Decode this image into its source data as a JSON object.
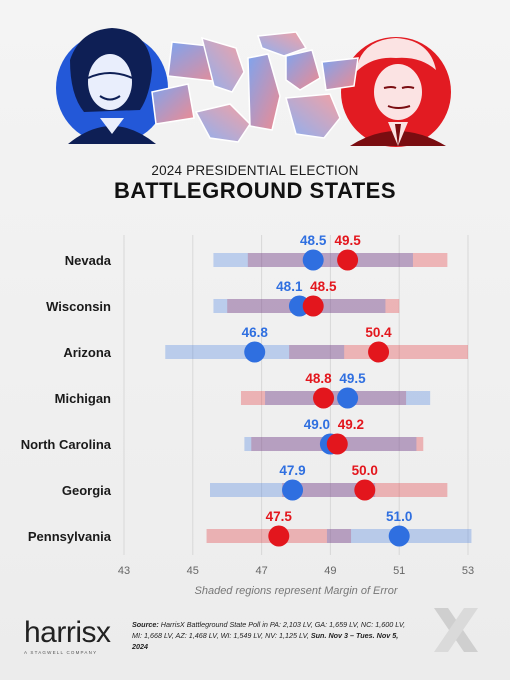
{
  "header": {
    "subtitle": "2024 PRESIDENTIAL ELECTION",
    "title": "BATTLEGROUND STATES"
  },
  "chart_data": {
    "type": "dot-range",
    "xlim": [
      43,
      53
    ],
    "xticks": [
      43,
      45,
      47,
      49,
      51,
      53
    ],
    "series": [
      {
        "color": "#2f6fe0"
      },
      {
        "color": "#e3161d"
      }
    ],
    "states": [
      {
        "name": "Nevada",
        "blue": 48.5,
        "blue_moe": 2.9,
        "red": 49.5,
        "red_moe": 2.9
      },
      {
        "name": "Wisconsin",
        "blue": 48.1,
        "blue_moe": 2.5,
        "red": 48.5,
        "red_moe": 2.5
      },
      {
        "name": "Arizona",
        "blue": 46.8,
        "blue_moe": 2.6,
        "red": 50.4,
        "red_moe": 2.6
      },
      {
        "name": "Michigan",
        "blue": 49.5,
        "blue_moe": 2.4,
        "red": 48.8,
        "red_moe": 2.4
      },
      {
        "name": "North Carolina",
        "blue": 49.0,
        "blue_moe": 2.5,
        "red": 49.2,
        "red_moe": 2.5
      },
      {
        "name": "Georgia",
        "blue": 47.9,
        "blue_moe": 2.4,
        "red": 50.0,
        "red_moe": 2.4
      },
      {
        "name": "Pennsylvania",
        "blue": 51.0,
        "blue_moe": 2.1,
        "red": 47.5,
        "red_moe": 2.1
      }
    ],
    "note": "Shaded regions represent Margin of Error"
  },
  "footer": {
    "logo": "harrisx",
    "logo_tagline": "A STAGWELL COMPANY",
    "source_label": "Source:",
    "source_text": "HarrisX Battleground State Poll in PA: 2,103 LV, GA: 1,659 LV, NC: 1,600 LV, MI: 1,668 LV, AZ: 1,468 LV, WI: 1,549 LV, NV: 1,125 LV,",
    "dates": "Sun. Nov 3 – Tues. Nov 5, 2024"
  }
}
